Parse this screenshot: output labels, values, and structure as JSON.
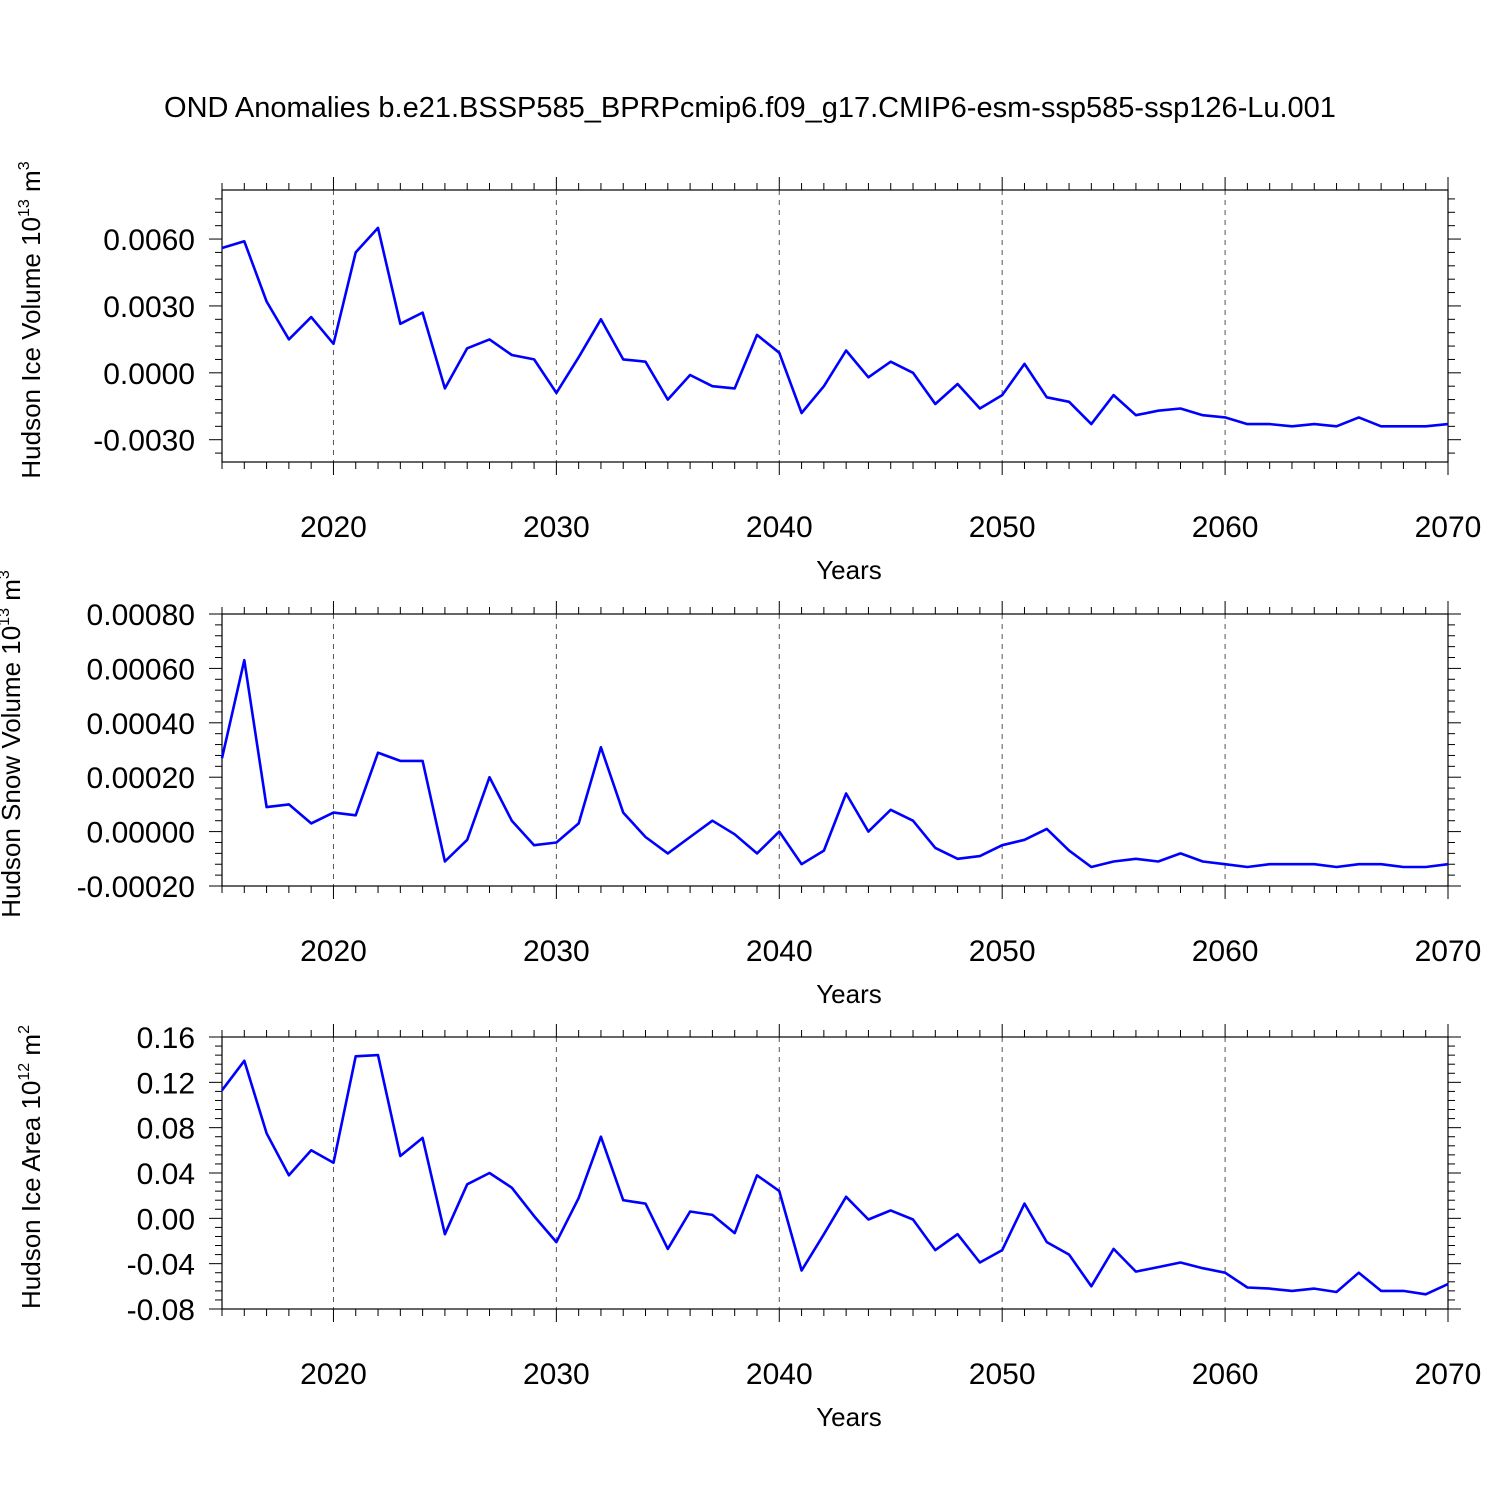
{
  "figure": {
    "title": "OND Anomalies b.e21.BSSP585_BPRPcmip6.f09_g17.CMIP6-esm-ssp585-ssp126-Lu.001"
  },
  "colors": {
    "line": "#0000ff",
    "axis": "#000000",
    "grid": "#555555"
  },
  "chart_data": [
    {
      "type": "line",
      "xlabel": "Years",
      "ylabel": {
        "text": "Hudson Ice Volume 10",
        "exp": "13",
        "unit": " m",
        "unit_exp": "3"
      },
      "xlim": [
        2015,
        2070
      ],
      "ylim": [
        -0.004,
        0.0082
      ],
      "x_ticks": [
        2020,
        2030,
        2040,
        2050,
        2060,
        2070
      ],
      "y_ticks": [
        -0.003,
        0.0,
        0.003,
        0.006
      ],
      "y_tick_labels": [
        "-0.0030",
        "0.0000",
        "0.0030",
        "0.0060"
      ],
      "grid": "vertical dashed at x major ticks",
      "series": [
        {
          "x": [
            2015,
            2016,
            2017,
            2018,
            2019,
            2020,
            2021,
            2022,
            2023,
            2024,
            2025,
            2026,
            2027,
            2028,
            2029,
            2030,
            2031,
            2032,
            2033,
            2034,
            2035,
            2036,
            2037,
            2038,
            2039,
            2040,
            2041,
            2042,
            2043,
            2044,
            2045,
            2046,
            2047,
            2048,
            2049,
            2050,
            2051,
            2052,
            2053,
            2054,
            2055,
            2056,
            2057,
            2058,
            2059,
            2060,
            2061,
            2062,
            2063,
            2064,
            2065,
            2066,
            2067,
            2068,
            2069,
            2070
          ],
          "values": [
            0.0056,
            0.0059,
            0.0032,
            0.0015,
            0.0025,
            0.0013,
            0.0054,
            0.0065,
            0.0022,
            0.0027,
            -0.0007,
            0.0011,
            0.0015,
            0.0008,
            0.0006,
            -0.0009,
            0.0007,
            0.0024,
            0.0006,
            0.0005,
            -0.0012,
            -0.0001,
            -0.0006,
            -0.0007,
            0.0017,
            0.0009,
            -0.0018,
            -0.0006,
            0.001,
            -0.0002,
            0.0005,
            0.0,
            -0.0014,
            -0.0005,
            -0.0016,
            -0.001,
            0.0004,
            -0.0011,
            -0.0013,
            -0.0023,
            -0.001,
            -0.0019,
            -0.0017,
            -0.0016,
            -0.0019,
            -0.002,
            -0.0023,
            -0.0023,
            -0.0024,
            -0.0023,
            -0.0024,
            -0.002,
            -0.0024,
            -0.0024,
            -0.0024,
            -0.0023
          ]
        }
      ]
    },
    {
      "type": "line",
      "xlabel": "Years",
      "ylabel": {
        "text": "Hudson Snow Volume 10",
        "exp": "13",
        "unit": " m",
        "unit_exp": "3"
      },
      "xlim": [
        2015,
        2070
      ],
      "ylim": [
        -0.0002,
        0.0008
      ],
      "x_ticks": [
        2020,
        2030,
        2040,
        2050,
        2060,
        2070
      ],
      "y_ticks": [
        -0.0002,
        0.0,
        0.0002,
        0.0004,
        0.0006,
        0.0008
      ],
      "y_tick_labels": [
        "-0.00020",
        "0.00000",
        "0.00020",
        "0.00040",
        "0.00060",
        "0.00080"
      ],
      "grid": "vertical dashed at x major ticks",
      "series": [
        {
          "x": [
            2015,
            2016,
            2017,
            2018,
            2019,
            2020,
            2021,
            2022,
            2023,
            2024,
            2025,
            2026,
            2027,
            2028,
            2029,
            2030,
            2031,
            2032,
            2033,
            2034,
            2035,
            2036,
            2037,
            2038,
            2039,
            2040,
            2041,
            2042,
            2043,
            2044,
            2045,
            2046,
            2047,
            2048,
            2049,
            2050,
            2051,
            2052,
            2053,
            2054,
            2055,
            2056,
            2057,
            2058,
            2059,
            2060,
            2061,
            2062,
            2063,
            2064,
            2065,
            2066,
            2067,
            2068,
            2069,
            2070
          ],
          "values": [
            0.00027,
            0.00063,
            9e-05,
            0.0001,
            3e-05,
            7e-05,
            6e-05,
            0.00029,
            0.00026,
            0.00026,
            -0.00011,
            -3e-05,
            0.0002,
            4e-05,
            -5e-05,
            -4e-05,
            3e-05,
            0.00031,
            7e-05,
            -2e-05,
            -8e-05,
            -2e-05,
            4e-05,
            -1e-05,
            -8e-05,
            0.0,
            -0.00012,
            -7e-05,
            0.00014,
            0.0,
            8e-05,
            4e-05,
            -6e-05,
            -0.0001,
            -9e-05,
            -5e-05,
            -3e-05,
            1e-05,
            -7e-05,
            -0.00013,
            -0.00011,
            -0.0001,
            -0.00011,
            -8e-05,
            -0.00011,
            -0.00012,
            -0.00013,
            -0.00012,
            -0.00012,
            -0.00012,
            -0.00013,
            -0.00012,
            -0.00012,
            -0.00013,
            -0.00013,
            -0.00012
          ]
        }
      ]
    },
    {
      "type": "line",
      "xlabel": "Years",
      "ylabel": {
        "text": "Hudson Ice Area 10",
        "exp": "12",
        "unit": " m",
        "unit_exp": "2"
      },
      "xlim": [
        2015,
        2070
      ],
      "ylim": [
        -0.08,
        0.16
      ],
      "x_ticks": [
        2020,
        2030,
        2040,
        2050,
        2060,
        2070
      ],
      "y_ticks": [
        -0.08,
        -0.04,
        0.0,
        0.04,
        0.08,
        0.12,
        0.16
      ],
      "y_tick_labels": [
        "-0.08",
        "-0.04",
        "0.00",
        "0.04",
        "0.08",
        "0.12",
        "0.16"
      ],
      "grid": "vertical dashed at x major ticks",
      "series": [
        {
          "x": [
            2015,
            2016,
            2017,
            2018,
            2019,
            2020,
            2021,
            2022,
            2023,
            2024,
            2025,
            2026,
            2027,
            2028,
            2029,
            2030,
            2031,
            2032,
            2033,
            2034,
            2035,
            2036,
            2037,
            2038,
            2039,
            2040,
            2041,
            2042,
            2043,
            2044,
            2045,
            2046,
            2047,
            2048,
            2049,
            2050,
            2051,
            2052,
            2053,
            2054,
            2055,
            2056,
            2057,
            2058,
            2059,
            2060,
            2061,
            2062,
            2063,
            2064,
            2065,
            2066,
            2067,
            2068,
            2069,
            2070
          ],
          "values": [
            0.113,
            0.139,
            0.075,
            0.038,
            0.06,
            0.049,
            0.143,
            0.144,
            0.055,
            0.071,
            -0.014,
            0.03,
            0.04,
            0.027,
            0.002,
            -0.021,
            0.018,
            0.072,
            0.016,
            0.013,
            -0.027,
            0.006,
            0.003,
            -0.013,
            0.038,
            0.024,
            -0.046,
            -0.014,
            0.019,
            -0.001,
            0.007,
            -0.001,
            -0.028,
            -0.014,
            -0.039,
            -0.028,
            0.013,
            -0.021,
            -0.032,
            -0.06,
            -0.027,
            -0.047,
            -0.043,
            -0.039,
            -0.044,
            -0.048,
            -0.061,
            -0.062,
            -0.064,
            -0.062,
            -0.065,
            -0.048,
            -0.064,
            -0.064,
            -0.067,
            -0.058
          ]
        }
      ]
    }
  ]
}
